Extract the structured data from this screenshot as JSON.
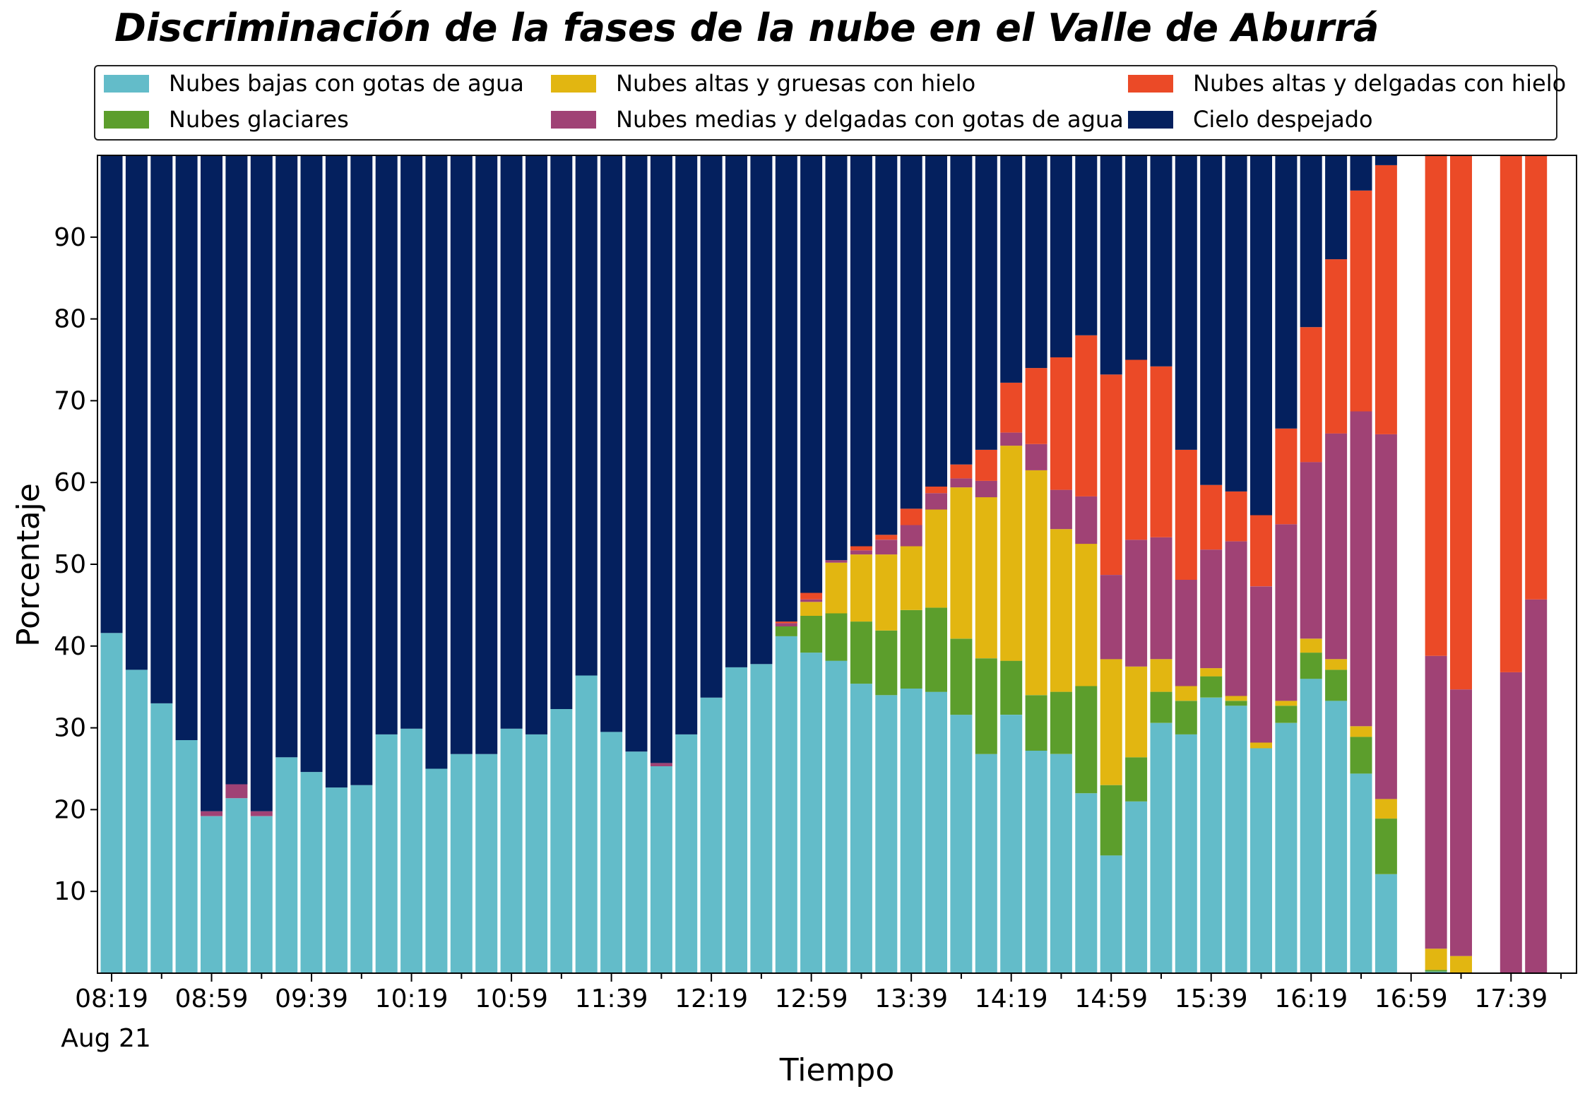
{
  "chart_data": {
    "type": "bar",
    "stacked": true,
    "title": "Discriminación de la fases de la nube en el Valle de Aburrá",
    "xlabel": "Tiempo",
    "ylabel": "Porcentaje",
    "ylim": [
      0,
      100
    ],
    "yticks": [
      10,
      20,
      30,
      40,
      50,
      60,
      70,
      80,
      90
    ],
    "xtick_labels": [
      "08:19",
      "08:59",
      "09:39",
      "10:19",
      "10:59",
      "11:39",
      "12:19",
      "12:59",
      "13:39",
      "14:19",
      "14:59",
      "15:39",
      "16:19",
      "16:59",
      "17:39"
    ],
    "xtick_sublabel": "Aug 21",
    "legend_position": "top",
    "grid": false,
    "categories": [
      "08:19",
      "08:29",
      "08:39",
      "08:49",
      "08:59",
      "09:09",
      "09:19",
      "09:29",
      "09:39",
      "09:49",
      "09:59",
      "10:09",
      "10:19",
      "10:29",
      "10:39",
      "10:49",
      "10:59",
      "11:09",
      "11:19",
      "11:29",
      "11:39",
      "11:49",
      "11:59",
      "12:09",
      "12:19",
      "12:29",
      "12:39",
      "12:49",
      "12:59",
      "13:09",
      "13:19",
      "13:29",
      "13:39",
      "13:49",
      "13:59",
      "14:09",
      "14:19",
      "14:29",
      "14:39",
      "14:49",
      "14:59",
      "15:09",
      "15:19",
      "15:29",
      "15:39",
      "15:49",
      "15:59",
      "16:09",
      "16:19",
      "16:29",
      "16:39",
      "16:49",
      "16:59",
      "17:09",
      "17:19",
      "17:29",
      "17:39",
      "17:49"
    ],
    "series": [
      {
        "name": "Nubes bajas con gotas de agua",
        "color": "#63bcc9",
        "values": [
          41.6,
          37.1,
          33.0,
          28.5,
          19.2,
          21.4,
          19.2,
          26.4,
          24.6,
          22.7,
          23.0,
          29.2,
          29.9,
          25.0,
          26.8,
          26.8,
          29.9,
          29.2,
          32.3,
          36.4,
          29.5,
          27.1,
          25.3,
          29.2,
          33.7,
          37.4,
          37.8,
          41.2,
          39.2,
          38.2,
          35.4,
          34.0,
          34.8,
          34.4,
          31.6,
          26.8,
          31.6,
          27.2,
          26.8,
          22.0,
          14.4,
          21.0,
          30.6,
          29.2,
          33.7,
          32.7,
          27.5,
          30.6,
          36.0,
          33.3,
          24.4,
          12.1,
          null,
          0.2,
          0,
          null,
          0,
          0
        ]
      },
      {
        "name": "Nubes glaciares",
        "color": "#5c9e2c",
        "values": [
          0,
          0,
          0,
          0,
          0,
          0,
          0,
          0,
          0,
          0,
          0,
          0,
          0,
          0,
          0,
          0,
          0,
          0,
          0,
          0,
          0,
          0,
          0,
          0,
          0,
          0,
          0,
          1.2,
          4.5,
          5.8,
          7.6,
          7.9,
          9.6,
          10.3,
          9.3,
          11.7,
          6.6,
          6.8,
          7.6,
          13.1,
          8.6,
          5.4,
          3.8,
          4.1,
          2.6,
          0.6,
          0,
          2.1,
          3.2,
          3.8,
          4.5,
          6.8,
          null,
          0.2,
          0,
          null,
          0,
          0
        ]
      },
      {
        "name": "Nubes altas y gruesas con hielo",
        "color": "#e2b611",
        "values": [
          0,
          0,
          0,
          0,
          0,
          0,
          0,
          0,
          0,
          0,
          0,
          0,
          0,
          0,
          0,
          0,
          0,
          0,
          0,
          0,
          0,
          0,
          0,
          0,
          0,
          0,
          0,
          0,
          1.7,
          6.2,
          8.2,
          9.3,
          7.8,
          12.0,
          18.5,
          19.7,
          26.3,
          27.5,
          19.9,
          17.4,
          15.4,
          11.1,
          4.0,
          1.8,
          1.0,
          0.6,
          0.7,
          0.6,
          1.7,
          1.3,
          1.3,
          2.4,
          null,
          2.6,
          2.1,
          null,
          0,
          0
        ]
      },
      {
        "name": "Nubes medias y delgadas con gotas de agua",
        "color": "#a04275",
        "values": [
          0,
          0,
          0,
          0,
          0.6,
          1.7,
          0.6,
          0,
          0,
          0,
          0,
          0,
          0,
          0,
          0,
          0,
          0,
          0,
          0,
          0,
          0,
          0,
          0.4,
          0,
          0,
          0,
          0,
          0.4,
          0.3,
          0.3,
          0.5,
          1.8,
          2.6,
          2.0,
          1.1,
          2.0,
          1.6,
          3.2,
          4.8,
          5.8,
          10.3,
          15.5,
          14.9,
          13.0,
          14.5,
          18.9,
          19.1,
          21.6,
          21.6,
          27.6,
          38.5,
          44.6,
          null,
          35.8,
          32.6,
          null,
          36.8,
          45.7
        ]
      },
      {
        "name": "Nubes altas y delgadas con hielo",
        "color": "#eb4a27",
        "values": [
          0,
          0,
          0,
          0,
          0,
          0,
          0,
          0,
          0,
          0,
          0,
          0,
          0,
          0,
          0,
          0,
          0,
          0,
          0,
          0,
          0,
          0,
          0,
          0,
          0,
          0,
          0,
          0.2,
          0.8,
          0,
          0.5,
          0.6,
          2.0,
          0.8,
          1.7,
          3.8,
          6.1,
          9.3,
          16.2,
          19.7,
          24.5,
          22.0,
          20.9,
          15.9,
          7.9,
          6.1,
          8.7,
          11.7,
          16.5,
          21.3,
          27.0,
          32.9,
          null,
          61.3,
          65.3,
          null,
          63.2,
          54.3
        ]
      },
      {
        "name": "Cielo despejado",
        "color": "#04205e",
        "values": [
          58.4,
          62.9,
          67.0,
          71.5,
          80.2,
          76.9,
          80.2,
          73.6,
          75.4,
          77.3,
          77.0,
          70.8,
          70.1,
          75.0,
          73.2,
          73.2,
          70.1,
          70.8,
          67.7,
          63.6,
          70.5,
          72.9,
          74.3,
          70.8,
          66.3,
          62.6,
          62.2,
          57.0,
          53.5,
          49.5,
          47.8,
          46.4,
          43.2,
          40.5,
          37.8,
          36.0,
          27.8,
          26.0,
          24.7,
          22.0,
          26.8,
          25.0,
          25.8,
          36.0,
          40.3,
          41.1,
          44.0,
          33.4,
          21.0,
          12.7,
          4.3,
          1.2,
          null,
          0,
          0,
          null,
          0,
          0
        ]
      }
    ]
  }
}
